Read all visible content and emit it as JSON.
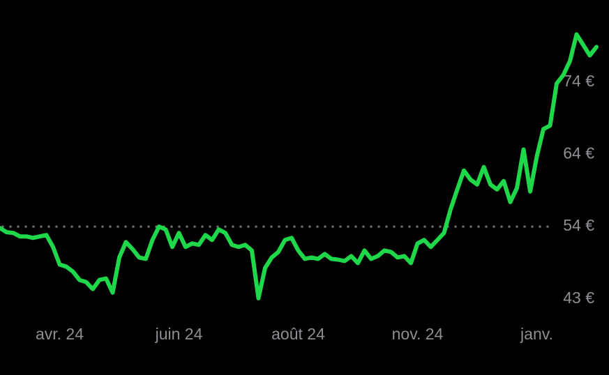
{
  "chart_data": {
    "type": "line",
    "x": [
      0,
      1,
      2,
      3,
      4,
      5,
      6,
      7,
      8,
      9,
      10,
      11,
      12,
      13,
      14,
      15,
      16,
      17,
      18,
      19,
      20,
      21,
      22,
      23,
      24,
      25,
      26,
      27,
      28,
      29,
      30,
      31,
      32,
      33,
      34,
      35,
      36,
      37,
      38,
      39,
      40,
      41,
      42,
      43,
      44,
      45,
      46,
      47,
      48,
      49,
      50,
      51,
      52,
      53,
      54,
      55,
      56,
      57,
      58,
      59,
      60,
      61,
      62,
      63,
      64,
      65,
      66,
      67,
      68,
      69,
      70,
      71,
      72,
      73,
      74,
      75,
      76,
      77,
      78,
      79,
      80,
      81,
      82,
      83,
      84,
      85,
      86,
      87,
      88,
      89,
      90
    ],
    "series": [
      {
        "color": "#1fd84a",
        "values": [
          53.5,
          52.9,
          52.8,
          52.3,
          52.3,
          52.1,
          52.3,
          52.5,
          50.8,
          48.3,
          48.0,
          47.3,
          46.1,
          45.8,
          44.8,
          46.1,
          46.3,
          44.3,
          49.3,
          51.5,
          50.5,
          49.3,
          49.1,
          51.8,
          53.7,
          53.3,
          50.8,
          52.8,
          50.8,
          51.3,
          51.1,
          52.5,
          51.8,
          53.3,
          52.8,
          51.1,
          50.8,
          51.1,
          50.3,
          43.5,
          47.8,
          49.3,
          50.1,
          51.8,
          52.1,
          50.3,
          49.1,
          49.3,
          49.1,
          49.8,
          49.1,
          49.0,
          48.8,
          49.5,
          48.5,
          50.3,
          49.1,
          49.5,
          50.3,
          50.1,
          49.3,
          49.5,
          48.5,
          51.3,
          51.8,
          50.8,
          51.8,
          52.8,
          56.2,
          59.0,
          61.7,
          60.4,
          59.7,
          62.2,
          59.7,
          59.0,
          60.2,
          57.2,
          59.2,
          64.7,
          58.7,
          63.7,
          67.6,
          68.1,
          74.1,
          75.3,
          77.3,
          81.1,
          79.6,
          78.1,
          79.3
        ]
      }
    ],
    "xlim": [
      0,
      90
    ],
    "xticks": [
      {
        "value": 9,
        "label": "avr. 24"
      },
      {
        "value": 27,
        "label": "juin 24"
      },
      {
        "value": 45,
        "label": "août 24"
      },
      {
        "value": 63,
        "label": "nov. 24"
      },
      {
        "value": 81,
        "label": "janv."
      }
    ],
    "ylim": [
      40.8,
      86.0
    ],
    "yticks": [
      {
        "value": 43.4,
        "label": "43 €"
      },
      {
        "value": 53.7,
        "label": "54 €"
      },
      {
        "value": 64.0,
        "label": "64 €"
      },
      {
        "value": 74.3,
        "label": "74 €"
      }
    ],
    "reference_line": 53.7
  }
}
